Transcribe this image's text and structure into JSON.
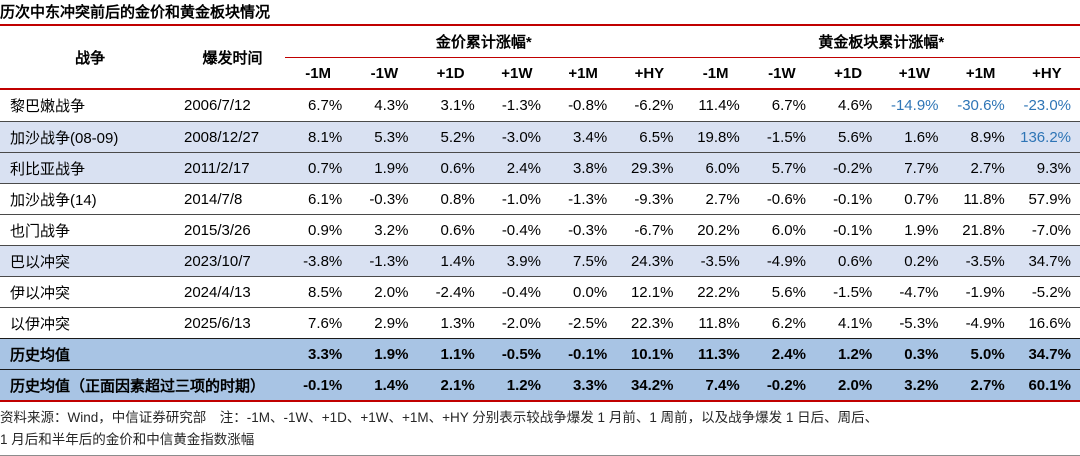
{
  "title": "历次中东冲突前后的金价和黄金板块情况",
  "colors": {
    "accent_red": "#C00000",
    "row_light_blue": "#D9E1F2",
    "summary_row_blue": "#A8C4E4",
    "highlight_text_blue": "#2E75B6"
  },
  "table": {
    "war_header": "战争",
    "date_header": "爆发时间",
    "groups": [
      {
        "label": "金价累计涨幅*",
        "sub": [
          "-1M",
          "-1W",
          "+1D",
          "+1W",
          "+1M",
          "+HY"
        ]
      },
      {
        "label": "黄金板块累计涨幅*",
        "sub": [
          "-1M",
          "-1W",
          "+1D",
          "+1W",
          "+1M",
          "+HY"
        ]
      }
    ],
    "rows": [
      {
        "war": "黎巴嫩战争",
        "date": "2006/7/12",
        "shaded": false,
        "values": [
          "6.7%",
          "4.3%",
          "3.1%",
          "-1.3%",
          "-0.8%",
          "-6.2%",
          "11.4%",
          "6.7%",
          "4.6%",
          "-14.9%",
          "-30.6%",
          "-23.0%"
        ],
        "blue_indices": [
          9,
          10,
          11
        ]
      },
      {
        "war": "加沙战争(08-09)",
        "date": "2008/12/27",
        "shaded": true,
        "values": [
          "8.1%",
          "5.3%",
          "5.2%",
          "-3.0%",
          "3.4%",
          "6.5%",
          "19.8%",
          "-1.5%",
          "5.6%",
          "1.6%",
          "8.9%",
          "136.2%"
        ],
        "blue_indices": [
          11
        ]
      },
      {
        "war": "利比亚战争",
        "date": "2011/2/17",
        "shaded": true,
        "values": [
          "0.7%",
          "1.9%",
          "0.6%",
          "2.4%",
          "3.8%",
          "29.3%",
          "6.0%",
          "5.7%",
          "-0.2%",
          "7.7%",
          "2.7%",
          "9.3%"
        ],
        "blue_indices": []
      },
      {
        "war": "加沙战争(14)",
        "date": "2014/7/8",
        "shaded": false,
        "values": [
          "6.1%",
          "-0.3%",
          "0.8%",
          "-1.0%",
          "-1.3%",
          "-9.3%",
          "2.7%",
          "-0.6%",
          "-0.1%",
          "0.7%",
          "11.8%",
          "57.9%"
        ],
        "blue_indices": []
      },
      {
        "war": "也门战争",
        "date": "2015/3/26",
        "shaded": false,
        "values": [
          "0.9%",
          "3.2%",
          "0.6%",
          "-0.4%",
          "-0.3%",
          "-6.7%",
          "20.2%",
          "6.0%",
          "-0.1%",
          "1.9%",
          "21.8%",
          "-7.0%"
        ],
        "blue_indices": []
      },
      {
        "war": "巴以冲突",
        "date": "2023/10/7",
        "shaded": true,
        "values": [
          "-3.8%",
          "-1.3%",
          "1.4%",
          "3.9%",
          "7.5%",
          "24.3%",
          "-3.5%",
          "-4.9%",
          "0.6%",
          "0.2%",
          "-3.5%",
          "34.7%"
        ],
        "blue_indices": []
      },
      {
        "war": "伊以冲突",
        "date": "2024/4/13",
        "shaded": false,
        "values": [
          "8.5%",
          "2.0%",
          "-2.4%",
          "-0.4%",
          "0.0%",
          "12.1%",
          "22.2%",
          "5.6%",
          "-1.5%",
          "-4.7%",
          "-1.9%",
          "-5.2%"
        ],
        "blue_indices": []
      },
      {
        "war": "以伊冲突",
        "date": "2025/6/13",
        "shaded": false,
        "values": [
          "7.6%",
          "2.9%",
          "1.3%",
          "-2.0%",
          "-2.5%",
          "22.3%",
          "11.8%",
          "6.2%",
          "4.1%",
          "-5.3%",
          "-4.9%",
          "16.6%"
        ],
        "blue_indices": []
      }
    ],
    "summary_rows": [
      {
        "label": "历史均值",
        "values": [
          "3.3%",
          "1.9%",
          "1.1%",
          "-0.5%",
          "-0.1%",
          "10.1%",
          "11.3%",
          "2.4%",
          "1.2%",
          "0.3%",
          "5.0%",
          "34.7%"
        ]
      },
      {
        "label": "历史均值（正面因素超过三项的时期）",
        "values": [
          "-0.1%",
          "1.4%",
          "2.1%",
          "1.2%",
          "3.3%",
          "34.2%",
          "7.4%",
          "-0.2%",
          "2.0%",
          "3.2%",
          "2.7%",
          "60.1%"
        ]
      }
    ]
  },
  "footnote": {
    "line1": "资料来源：Wind，中信证券研究部　注：-1M、-1W、+1D、+1W、+1M、+HY 分别表示较战争爆发 1 月前、1 周前，以及战争爆发 1 日后、周后、",
    "line2": "1 月后和半年后的金价和中信黄金指数涨幅"
  }
}
